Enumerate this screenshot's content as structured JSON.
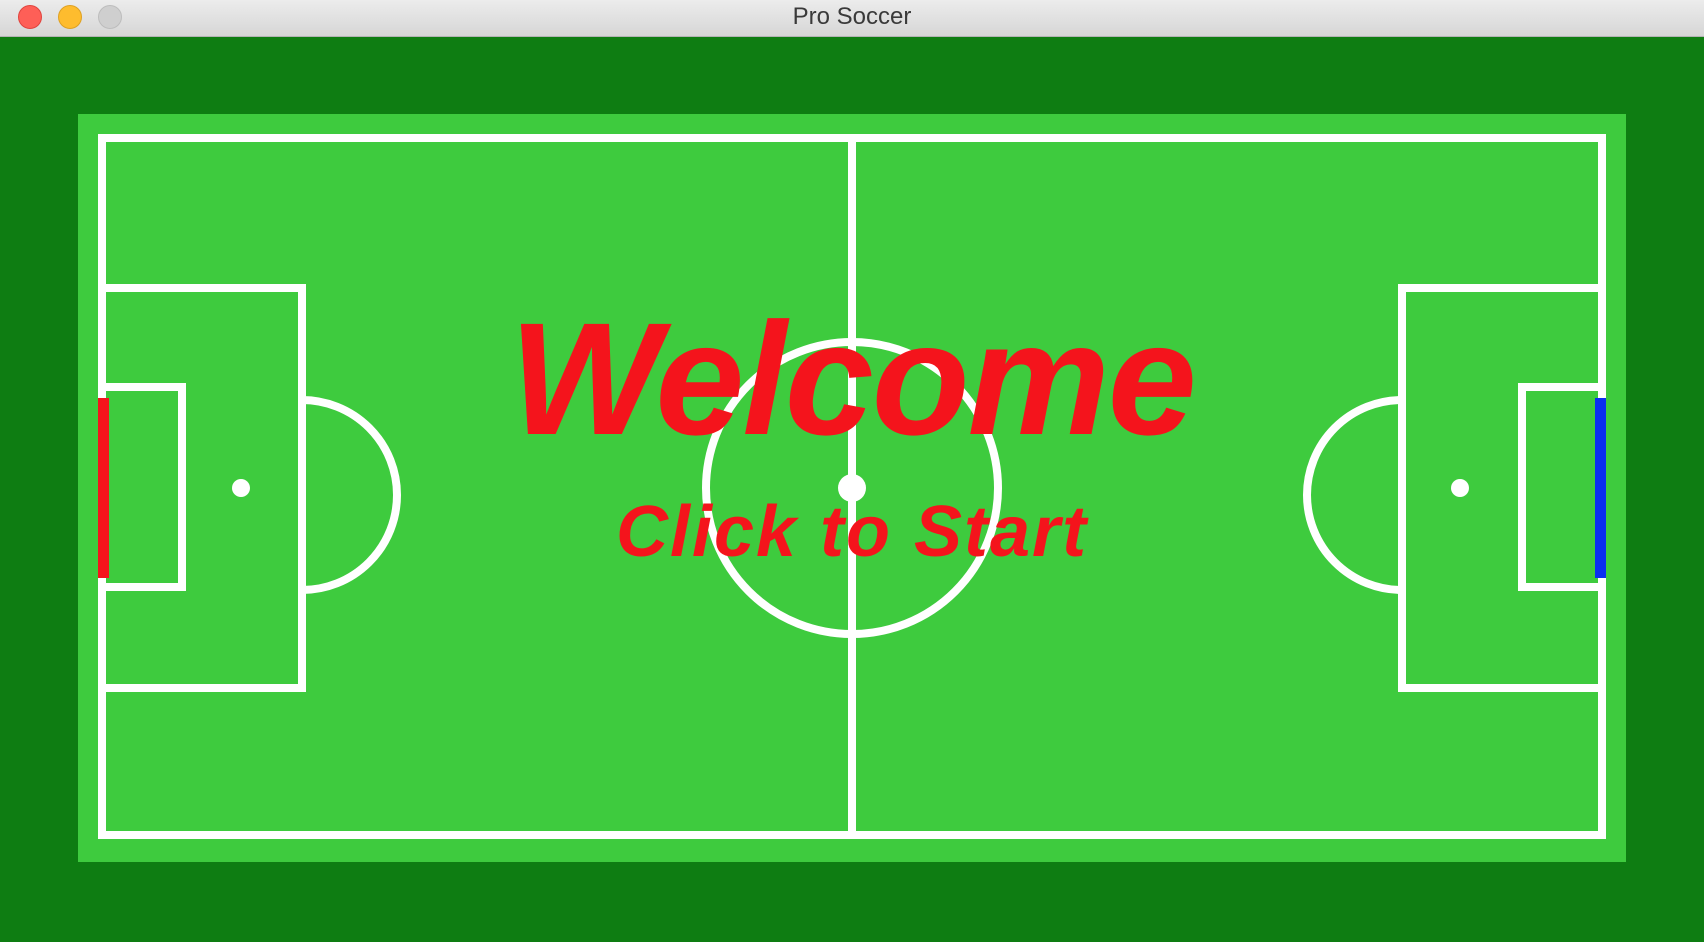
{
  "window": {
    "title": "Pro Soccer"
  },
  "screen": {
    "heading": "Welcome",
    "prompt": "Click to Start"
  },
  "colors": {
    "outer_border": "#0e7d12",
    "pitch": "#3ecb3e",
    "lines": "#ffffff",
    "text": "#f4141c",
    "left_goal": "#f4141c",
    "right_goal": "#0a2ff0"
  },
  "icons": {
    "close": "close-icon",
    "minimize": "minimize-icon",
    "zoom": "zoom-icon"
  }
}
